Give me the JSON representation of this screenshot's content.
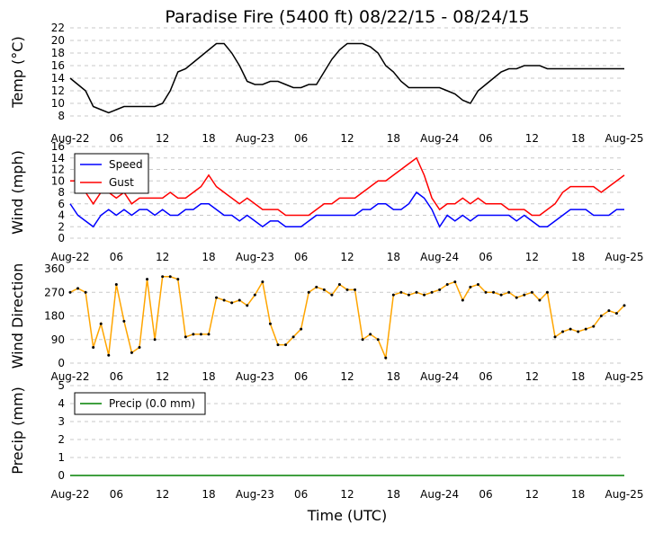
{
  "figure": {
    "title": "Paradise Fire (5400 ft) 08/22/15 - 08/24/15",
    "xlabel": "Time (UTC)"
  },
  "x_ticks": [
    "Aug-22",
    "06",
    "12",
    "18",
    "Aug-23",
    "06",
    "12",
    "18",
    "Aug-24",
    "06",
    "12",
    "18",
    "Aug-25"
  ],
  "chart_data": [
    {
      "type": "line",
      "ylabel": "Temp (°C)",
      "ylim": [
        8,
        22
      ],
      "yticks": [
        8,
        10,
        12,
        14,
        16,
        18,
        20,
        22
      ],
      "x_range_hours": [
        0,
        72
      ],
      "grid": "horizontal dashed",
      "series": [
        {
          "name": "Temp",
          "color": "#000000",
          "x": [
            0,
            1,
            2,
            3,
            4,
            5,
            6,
            7,
            8,
            9,
            10,
            11,
            12,
            13,
            14,
            15,
            16,
            17,
            18,
            19,
            20,
            21,
            22,
            23,
            24,
            25,
            26,
            27,
            28,
            29,
            30,
            31,
            32,
            33,
            34,
            35,
            36,
            37,
            38,
            39,
            40,
            41,
            42,
            43,
            44,
            45,
            46,
            47,
            48,
            49,
            50,
            51,
            52,
            53,
            54,
            55,
            56,
            57,
            58,
            59,
            60,
            61,
            62,
            63,
            64,
            65,
            66,
            67,
            68,
            69,
            70,
            71,
            72
          ],
          "values": [
            14,
            13,
            12,
            9.5,
            9,
            8.5,
            9,
            9.5,
            9.5,
            9.5,
            9.5,
            9.5,
            10,
            12,
            15,
            15.5,
            16.5,
            17.5,
            18.5,
            19.5,
            19.5,
            18,
            16,
            13.5,
            13,
            13,
            13.5,
            13.5,
            13,
            12.5,
            12.5,
            13,
            13,
            15,
            17,
            18.5,
            19.5,
            19.5,
            19.5,
            19,
            18,
            16,
            15,
            13.5,
            12.5,
            12.5,
            12.5,
            12.5,
            12.5,
            12,
            11.5,
            10.5,
            10,
            12,
            13,
            14,
            15,
            15.5,
            15.5,
            16,
            16,
            16,
            15.5,
            15.5,
            15.5,
            15.5,
            15.5,
            15.5,
            15.5,
            15.5,
            15.5,
            15.5,
            15.5
          ]
        }
      ]
    },
    {
      "type": "line",
      "ylabel": "Wind (mph)",
      "ylim": [
        0,
        16
      ],
      "yticks": [
        0,
        2,
        4,
        6,
        8,
        10,
        12,
        14,
        16
      ],
      "x_range_hours": [
        0,
        72
      ],
      "grid": "horizontal dashed",
      "legend": "top-left",
      "series": [
        {
          "name": "Speed",
          "color": "#0000ff",
          "x": [
            0,
            1,
            2,
            3,
            4,
            5,
            6,
            7,
            8,
            9,
            10,
            11,
            12,
            13,
            14,
            15,
            16,
            17,
            18,
            19,
            20,
            21,
            22,
            23,
            24,
            25,
            26,
            27,
            28,
            29,
            30,
            31,
            32,
            33,
            34,
            35,
            36,
            37,
            38,
            39,
            40,
            41,
            42,
            43,
            44,
            45,
            46,
            47,
            48,
            49,
            50,
            51,
            52,
            53,
            54,
            55,
            56,
            57,
            58,
            59,
            60,
            61,
            62,
            63,
            64,
            65,
            66,
            67,
            68,
            69,
            70,
            71,
            72
          ],
          "values": [
            6,
            4,
            3,
            2,
            4,
            5,
            4,
            5,
            4,
            5,
            5,
            4,
            5,
            4,
            4,
            5,
            5,
            6,
            6,
            5,
            4,
            4,
            3,
            4,
            3,
            2,
            3,
            3,
            2,
            2,
            2,
            3,
            4,
            4,
            4,
            4,
            4,
            4,
            5,
            5,
            6,
            6,
            5,
            5,
            6,
            8,
            7,
            5,
            2,
            4,
            3,
            4,
            3,
            4,
            4,
            4,
            4,
            4,
            3,
            4,
            3,
            2,
            2,
            3,
            4,
            5,
            5,
            5,
            4,
            4,
            4,
            5,
            5
          ]
        },
        {
          "name": "Gust",
          "color": "#ff0000",
          "x": [
            0,
            1,
            2,
            3,
            4,
            5,
            6,
            7,
            8,
            9,
            10,
            11,
            12,
            13,
            14,
            15,
            16,
            17,
            18,
            19,
            20,
            21,
            22,
            23,
            24,
            25,
            26,
            27,
            28,
            29,
            30,
            31,
            32,
            33,
            34,
            35,
            36,
            37,
            38,
            39,
            40,
            41,
            42,
            43,
            44,
            45,
            46,
            47,
            48,
            49,
            50,
            51,
            52,
            53,
            54,
            55,
            56,
            57,
            58,
            59,
            60,
            61,
            62,
            63,
            64,
            65,
            66,
            67,
            68,
            69,
            70,
            71,
            72
          ],
          "values": [
            10,
            10,
            8,
            6,
            8,
            8,
            7,
            8,
            6,
            7,
            7,
            7,
            7,
            8,
            7,
            7,
            8,
            9,
            11,
            9,
            8,
            7,
            6,
            7,
            6,
            5,
            5,
            5,
            4,
            4,
            4,
            4,
            5,
            6,
            6,
            7,
            7,
            7,
            8,
            9,
            10,
            10,
            11,
            12,
            13,
            14,
            11,
            7,
            5,
            6,
            6,
            7,
            6,
            7,
            6,
            6,
            6,
            5,
            5,
            5,
            4,
            4,
            5,
            6,
            8,
            9,
            9,
            9,
            9,
            8,
            9,
            10,
            11
          ]
        }
      ]
    },
    {
      "type": "scatter",
      "ylabel": "Wind Direction",
      "ylim": [
        0,
        360
      ],
      "yticks": [
        0,
        90,
        180,
        270,
        360
      ],
      "x_range_hours": [
        0,
        72
      ],
      "grid": "horizontal dashed",
      "series": [
        {
          "name": "Wind Direction",
          "color": "#ffa500",
          "x": [
            0,
            1,
            2,
            3,
            4,
            5,
            6,
            7,
            8,
            9,
            10,
            11,
            12,
            13,
            14,
            15,
            16,
            17,
            18,
            19,
            20,
            21,
            22,
            23,
            24,
            25,
            26,
            27,
            28,
            29,
            30,
            31,
            32,
            33,
            34,
            35,
            36,
            37,
            38,
            39,
            40,
            41,
            42,
            43,
            44,
            45,
            46,
            47,
            48,
            49,
            50,
            51,
            52,
            53,
            54,
            55,
            56,
            57,
            58,
            59,
            60,
            61,
            62,
            63,
            64,
            65,
            66,
            67,
            68,
            69,
            70,
            71,
            72
          ],
          "values": [
            270,
            285,
            270,
            60,
            150,
            30,
            300,
            160,
            40,
            60,
            320,
            90,
            330,
            330,
            320,
            100,
            110,
            110,
            110,
            250,
            240,
            230,
            240,
            220,
            260,
            310,
            150,
            70,
            70,
            100,
            130,
            270,
            290,
            280,
            260,
            300,
            280,
            280,
            90,
            110,
            90,
            20,
            260,
            270,
            260,
            270,
            260,
            270,
            280,
            300,
            310,
            240,
            290,
            300,
            270,
            270,
            260,
            270,
            250,
            260,
            270,
            240,
            270,
            100,
            120,
            130,
            120,
            130,
            140,
            180,
            200,
            190,
            220
          ]
        }
      ]
    },
    {
      "type": "line",
      "ylabel": "Precip (mm)",
      "ylim": [
        0,
        5
      ],
      "yticks": [
        0,
        1,
        2,
        3,
        4,
        5
      ],
      "x_range_hours": [
        0,
        72
      ],
      "grid": "horizontal dashed",
      "legend": "top-left",
      "series": [
        {
          "name": "Precip (0.0 mm)",
          "color": "#008000",
          "x": [
            0,
            72
          ],
          "values": [
            0,
            0
          ]
        }
      ]
    }
  ]
}
